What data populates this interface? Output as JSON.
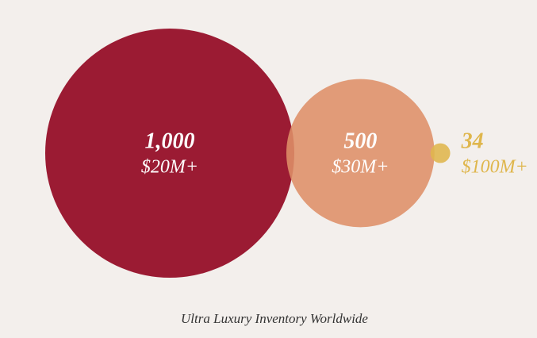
{
  "chart_data": {
    "type": "bubble",
    "title": "Ultra Luxury Inventory Worldwide",
    "values": [
      1000,
      500,
      34
    ],
    "value_labels": [
      "1,000",
      "500",
      "34"
    ],
    "categories": [
      "$20M+",
      "$30M+",
      "$100M+"
    ],
    "colors": [
      "#9b1b33",
      "#de9068",
      "#dfb64c"
    ]
  }
}
